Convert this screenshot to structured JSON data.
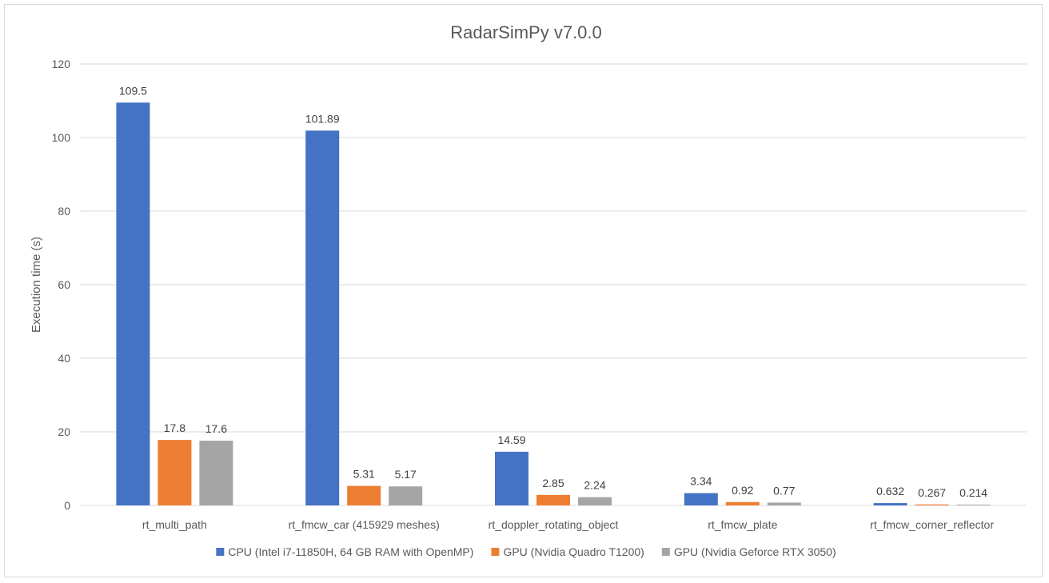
{
  "chart_data": {
    "type": "bar",
    "title": "RadarSimPy v7.0.0",
    "xlabel": "",
    "ylabel": "Execution time (s)",
    "ylim": [
      0,
      120
    ],
    "ytick_step": 20,
    "grid": true,
    "legend_position": "bottom",
    "categories": [
      "rt_multi_path",
      "rt_fmcw_car (415929 meshes)",
      "rt_doppler_rotating_object",
      "rt_fmcw_plate",
      "rt_fmcw_corner_reflector"
    ],
    "series": [
      {
        "name": "CPU (Intel i7-11850H, 64 GB RAM with OpenMP)",
        "color": "#4472c4",
        "values": [
          109.5,
          101.89,
          14.59,
          3.34,
          0.632
        ],
        "labels": [
          "109.5",
          "101.89",
          "14.59",
          "3.34",
          "0.632"
        ]
      },
      {
        "name": "GPU (Nvidia Quadro T1200)",
        "color": "#ed7d31",
        "values": [
          17.8,
          5.31,
          2.85,
          0.92,
          0.267
        ],
        "labels": [
          "17.8",
          "5.31",
          "2.85",
          "0.92",
          "0.267"
        ]
      },
      {
        "name": "GPU (Nvidia Geforce RTX 3050)",
        "color": "#a5a5a5",
        "values": [
          17.6,
          5.17,
          2.24,
          0.77,
          0.214
        ],
        "labels": [
          "17.6",
          "5.17",
          "2.24",
          "0.77",
          "0.214"
        ]
      }
    ]
  }
}
